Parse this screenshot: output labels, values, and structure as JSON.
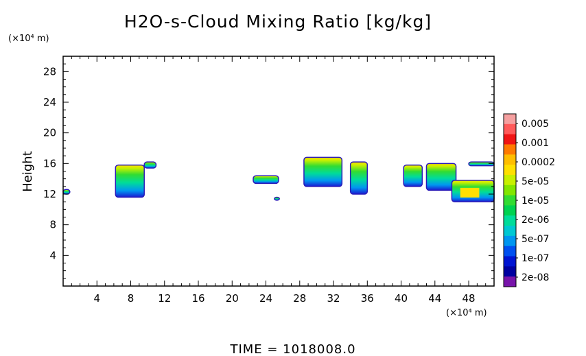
{
  "chart_data": {
    "type": "heatmap",
    "title": "H2O-s-Cloud Mixing Ratio [kg/kg]",
    "xlabel": "",
    "ylabel": "Height",
    "x_unit": "(×10⁴ m)",
    "y_unit": "(×10⁴ m)",
    "xlim": [
      0,
      51
    ],
    "ylim": [
      0,
      30
    ],
    "x_ticks": [
      4,
      8,
      12,
      16,
      20,
      24,
      28,
      32,
      36,
      40,
      44,
      48
    ],
    "y_ticks": [
      4,
      8,
      12,
      16,
      20,
      24,
      28
    ],
    "colorbar": {
      "labels": [
        "0.005",
        "0.001",
        "0.0002",
        "5e-05",
        "1e-05",
        "2e-06",
        "5e-07",
        "1e-07",
        "2e-08"
      ],
      "colors": [
        "#f5a0a0",
        "#ff5a5a",
        "#f01414",
        "#ff7a00",
        "#ffbe00",
        "#ffe000",
        "#c8f000",
        "#82e600",
        "#32dc32",
        "#00d250",
        "#00dc9a",
        "#00c8d2",
        "#0096f0",
        "#0050f0",
        "#0014d2",
        "#0000a0",
        "#7814aa"
      ]
    },
    "regions": [
      {
        "x": [
          0.0,
          0.8
        ],
        "y": [
          12.0,
          12.6
        ],
        "level": 0.55
      },
      {
        "x": [
          6.2,
          9.6
        ],
        "y": [
          11.6,
          15.8
        ],
        "level": 0.6
      },
      {
        "x": [
          9.6,
          11.0
        ],
        "y": [
          15.4,
          16.2
        ],
        "level": 0.15
      },
      {
        "x": [
          22.5,
          25.5
        ],
        "y": [
          13.4,
          14.4
        ],
        "level": 0.5
      },
      {
        "x": [
          25.0,
          25.6
        ],
        "y": [
          11.2,
          11.6
        ],
        "level": 0.6
      },
      {
        "x": [
          28.5,
          33.0
        ],
        "y": [
          13.0,
          16.8
        ],
        "level": 0.55
      },
      {
        "x": [
          34.0,
          36.0
        ],
        "y": [
          12.0,
          16.2
        ],
        "level": 0.55
      },
      {
        "x": [
          40.3,
          42.5
        ],
        "y": [
          13.0,
          15.8
        ],
        "level": 0.45
      },
      {
        "x": [
          43.0,
          46.5
        ],
        "y": [
          12.5,
          16.0
        ],
        "level": 0.6
      },
      {
        "x": [
          46.0,
          51.0
        ],
        "y": [
          11.0,
          13.8
        ],
        "level": 0.9
      },
      {
        "x": [
          48.0,
          51.0
        ],
        "y": [
          15.7,
          16.2
        ],
        "level": 0.2
      }
    ]
  },
  "footer": {
    "time_label": "TIME = 1018008.0"
  }
}
